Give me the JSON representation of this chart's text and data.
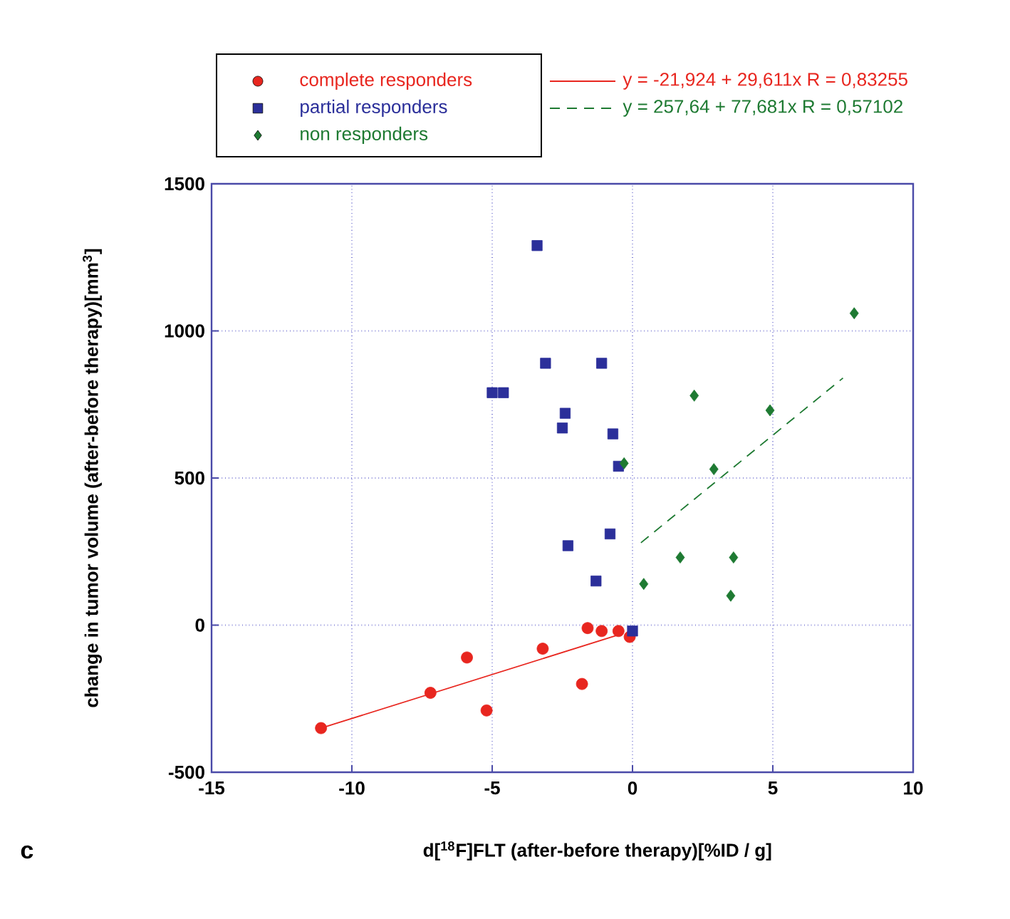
{
  "chart_data": {
    "type": "scatter",
    "xlabel": "d[$^{18}$F]FLT (after-before therapy)[%ID / g]",
    "ylabel": "change in tumor volume (after-before therapy)[mm$^{3}$]",
    "xlim": [
      -15,
      10
    ],
    "xticks": [
      -15,
      -10,
      -5,
      0,
      5,
      10
    ],
    "ylim": [
      -500,
      1500
    ],
    "yticks": [
      -500,
      0,
      500,
      1000,
      1500
    ],
    "grid": true,
    "legend": "top",
    "annotations": [
      "c"
    ],
    "series": [
      {
        "name": "complete responders",
        "type": "scatter",
        "marker": "circle",
        "color": "#e8261f",
        "x": [
          -11.1,
          -7.2,
          -5.9,
          -5.2,
          -3.2,
          -1.8,
          -1.6,
          -1.1,
          -0.5,
          -0.1
        ],
        "values": [
          -350,
          -230,
          -110,
          -290,
          -80,
          -200,
          -10,
          -20,
          -20,
          -40
        ]
      },
      {
        "name": "partial responders",
        "type": "scatter",
        "marker": "square",
        "color": "#2b2f9a",
        "x": [
          -3.4,
          -3.1,
          -1.1,
          -5.0,
          -4.6,
          -2.4,
          -2.5,
          -0.7,
          -0.5,
          -0.8,
          -2.3,
          -1.3,
          0.0
        ],
        "values": [
          1290,
          890,
          890,
          790,
          790,
          720,
          670,
          650,
          540,
          310,
          270,
          150,
          -20
        ]
      },
      {
        "name": "non responders",
        "type": "scatter",
        "marker": "diamond",
        "color": "#1e7a32",
        "x": [
          7.9,
          2.2,
          4.9,
          -0.3,
          2.9,
          1.7,
          3.6,
          0.4,
          3.5
        ],
        "values": [
          1060,
          780,
          730,
          550,
          530,
          230,
          230,
          140,
          100
        ]
      },
      {
        "name": "y = -21,924 + 29,611x  R = 0,83255",
        "type": "line",
        "line_style": "solid",
        "marker": "none",
        "color": "#e8261f",
        "x": [
          -11.1,
          -0.4
        ],
        "values": [
          -350,
          -30
        ]
      },
      {
        "name": "y = 257,64 + 77,681x  R = 0,57102",
        "type": "line",
        "line_style": "dashed",
        "marker": "none",
        "color": "#1e7a32",
        "x": [
          0.3,
          7.5
        ],
        "values": [
          280,
          840
        ]
      }
    ]
  }
}
